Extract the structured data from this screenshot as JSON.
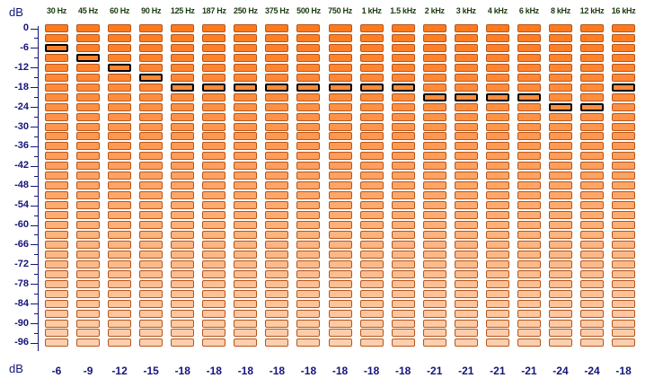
{
  "unit_top": "dB",
  "unit_bottom": "dB",
  "frequencies": [
    "30 Hz",
    "45 Hz",
    "60 Hz",
    "90 Hz",
    "125 Hz",
    "187 Hz",
    "250 Hz",
    "375 Hz",
    "500 Hz",
    "750 Hz",
    "1 kHz",
    "1.5 kHz",
    "2 kHz",
    "3 kHz",
    "4 kHz",
    "6 kHz",
    "8 kHz",
    "12 kHz",
    "16 kHz"
  ],
  "y_axis": {
    "labels": [
      "0",
      "-6",
      "-12",
      "-18",
      "-24",
      "-30",
      "-36",
      "-42",
      "-48",
      "-54",
      "-60",
      "-66",
      "-72",
      "-78",
      "-84",
      "-90",
      "-96"
    ],
    "min": -99,
    "max": 0,
    "segment_step_db": 3
  },
  "levels_db": [
    -6,
    -9,
    -12,
    -15,
    -18,
    -18,
    -18,
    -18,
    -18,
    -18,
    -18,
    -18,
    -21,
    -21,
    -21,
    -21,
    -24,
    -24,
    -18
  ],
  "level_labels": [
    "-6",
    "-9",
    "-12",
    "-15",
    "-18",
    "-18",
    "-18",
    "-18",
    "-18",
    "-18",
    "-18",
    "-18",
    "-21",
    "-21",
    "-21",
    "-21",
    "-24",
    "-24",
    "-18"
  ],
  "colors": {
    "segment_top": "#ff7a1f",
    "segment_bottom": "#ffcfad",
    "segment_border": "#b6561a",
    "active_border": "#000000",
    "label_blue": "#14147a",
    "label_green": "#1b3a10"
  },
  "chart_data": {
    "type": "bar",
    "categories": [
      "30 Hz",
      "45 Hz",
      "60 Hz",
      "90 Hz",
      "125 Hz",
      "187 Hz",
      "250 Hz",
      "375 Hz",
      "500 Hz",
      "750 Hz",
      "1 kHz",
      "1.5 kHz",
      "2 kHz",
      "3 kHz",
      "4 kHz",
      "6 kHz",
      "8 kHz",
      "12 kHz",
      "16 kHz"
    ],
    "values": [
      -6,
      -9,
      -12,
      -15,
      -18,
      -18,
      -18,
      -18,
      -18,
      -18,
      -18,
      -18,
      -21,
      -21,
      -21,
      -21,
      -24,
      -24,
      -18
    ],
    "title": "",
    "xlabel": "",
    "ylabel": "dB",
    "ylim": [
      -99,
      0
    ],
    "grid": false
  }
}
